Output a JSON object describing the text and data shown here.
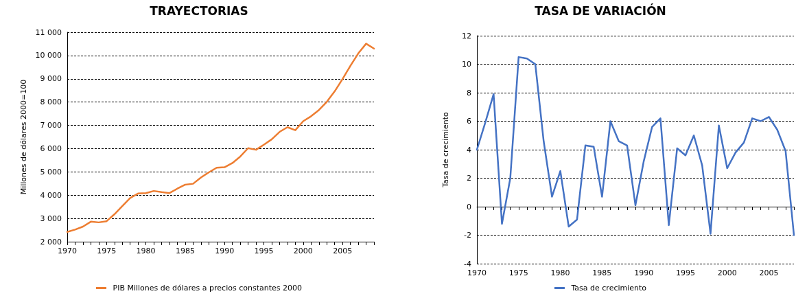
{
  "chart_data": [
    {
      "type": "line",
      "title": "TRAYECTORIAS",
      "ylabel": "Millones de dólares 2000=100",
      "categories": [
        "1970",
        null,
        null,
        null,
        null,
        "1975",
        null,
        null,
        null,
        null,
        "1980",
        null,
        null,
        null,
        null,
        "1985",
        null,
        null,
        null,
        null,
        "1990",
        null,
        null,
        null,
        null,
        "1995",
        null,
        null,
        null,
        null,
        "2000",
        null,
        null,
        null,
        null,
        "2005",
        null,
        null,
        null,
        null
      ],
      "series": [
        {
          "name": "PIB Millones de dólares a precios constantes 2000",
          "color": "#ed7d31",
          "values": [
            2420,
            2520,
            2650,
            2860,
            2830,
            2880,
            3180,
            3530,
            3880,
            4070,
            4090,
            4180,
            4130,
            4090,
            4280,
            4450,
            4490,
            4760,
            4980,
            5180,
            5200,
            5380,
            5660,
            6020,
            5950,
            6170,
            6400,
            6720,
            6920,
            6790,
            7180,
            7390,
            7660,
            8010,
            8460,
            8990,
            9560,
            10090,
            10510,
            10300
          ]
        }
      ],
      "ylim": [
        2000,
        11000
      ],
      "yticks": [
        {
          "value": 2000,
          "label": "2 000"
        },
        {
          "value": 3000,
          "label": "3 000"
        },
        {
          "value": 4000,
          "label": "4 000"
        },
        {
          "value": 5000,
          "label": "5 000"
        },
        {
          "value": 6000,
          "label": "6 000"
        },
        {
          "value": 7000,
          "label": "7 000"
        },
        {
          "value": 8000,
          "label": "8 000"
        },
        {
          "value": 9000,
          "label": "9 000"
        },
        {
          "value": 10000,
          "label": "10 000"
        },
        {
          "value": 11000,
          "label": "11 000"
        }
      ],
      "grid": "y",
      "legend": "bottom",
      "marker": "none",
      "line_style": "solid"
    },
    {
      "type": "line",
      "title": "TASA DE VARIACIÓN",
      "ylabel": "Tasa de crecimiento",
      "categories": [
        "1970",
        null,
        null,
        null,
        null,
        "1975",
        null,
        null,
        null,
        null,
        "1980",
        null,
        null,
        null,
        null,
        "1985",
        null,
        null,
        null,
        null,
        "1990",
        null,
        null,
        null,
        null,
        "1995",
        null,
        null,
        null,
        null,
        "2000",
        null,
        null,
        null,
        null,
        "2005",
        null,
        null,
        null
      ],
      "series": [
        {
          "name": "Tasa de crecimiento",
          "color": "#4472c4",
          "values": [
            4.0,
            5.9,
            7.9,
            -1.2,
            2.0,
            10.5,
            10.4,
            10.0,
            4.6,
            0.7,
            2.5,
            -1.4,
            -0.9,
            4.3,
            4.2,
            0.7,
            6.0,
            4.6,
            4.3,
            0.1,
            3.2,
            5.6,
            6.2,
            -1.3,
            4.1,
            3.6,
            5.0,
            2.9,
            -1.9,
            5.7,
            2.7,
            3.8,
            4.5,
            6.2,
            6.0,
            6.3,
            5.4,
            3.9,
            -2.0
          ]
        }
      ],
      "ylim": [
        -4,
        12
      ],
      "yticks": [
        -4,
        -2,
        0,
        2,
        4,
        6,
        8,
        10,
        12
      ],
      "grid": "y",
      "legend": "bottom",
      "marker": "none",
      "line_style": "solid"
    }
  ]
}
